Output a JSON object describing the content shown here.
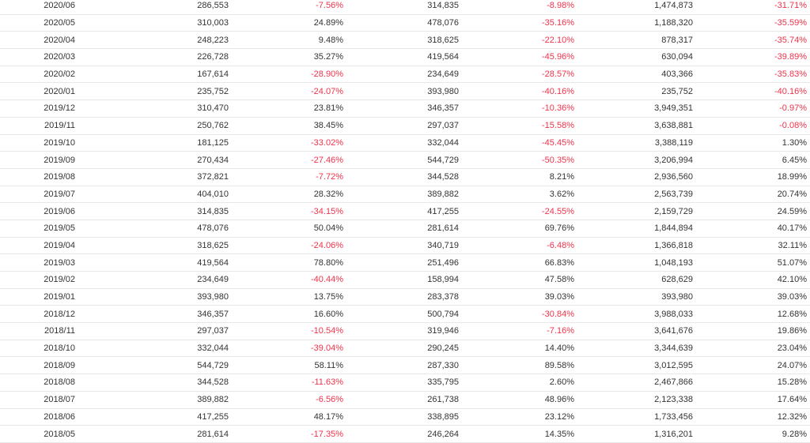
{
  "colors": {
    "negative": "#f0334b",
    "positive": "#333333",
    "row_border": "#e8e8e8"
  },
  "rows": [
    [
      "2020/06",
      "286,553",
      "-7.56%",
      "314,835",
      "-8.98%",
      "1,474,873",
      "-31.71%"
    ],
    [
      "2020/05",
      "310,003",
      "24.89%",
      "478,076",
      "-35.16%",
      "1,188,320",
      "-35.59%"
    ],
    [
      "2020/04",
      "248,223",
      "9.48%",
      "318,625",
      "-22.10%",
      "878,317",
      "-35.74%"
    ],
    [
      "2020/03",
      "226,728",
      "35.27%",
      "419,564",
      "-45.96%",
      "630,094",
      "-39.89%"
    ],
    [
      "2020/02",
      "167,614",
      "-28.90%",
      "234,649",
      "-28.57%",
      "403,366",
      "-35.83%"
    ],
    [
      "2020/01",
      "235,752",
      "-24.07%",
      "393,980",
      "-40.16%",
      "235,752",
      "-40.16%"
    ],
    [
      "2019/12",
      "310,470",
      "23.81%",
      "346,357",
      "-10.36%",
      "3,949,351",
      "-0.97%"
    ],
    [
      "2019/11",
      "250,762",
      "38.45%",
      "297,037",
      "-15.58%",
      "3,638,881",
      "-0.08%"
    ],
    [
      "2019/10",
      "181,125",
      "-33.02%",
      "332,044",
      "-45.45%",
      "3,388,119",
      "1.30%"
    ],
    [
      "2019/09",
      "270,434",
      "-27.46%",
      "544,729",
      "-50.35%",
      "3,206,994",
      "6.45%"
    ],
    [
      "2019/08",
      "372,821",
      "-7.72%",
      "344,528",
      "8.21%",
      "2,936,560",
      "18.99%"
    ],
    [
      "2019/07",
      "404,010",
      "28.32%",
      "389,882",
      "3.62%",
      "2,563,739",
      "20.74%"
    ],
    [
      "2019/06",
      "314,835",
      "-34.15%",
      "417,255",
      "-24.55%",
      "2,159,729",
      "24.59%"
    ],
    [
      "2019/05",
      "478,076",
      "50.04%",
      "281,614",
      "69.76%",
      "1,844,894",
      "40.17%"
    ],
    [
      "2019/04",
      "318,625",
      "-24.06%",
      "340,719",
      "-6.48%",
      "1,366,818",
      "32.11%"
    ],
    [
      "2019/03",
      "419,564",
      "78.80%",
      "251,496",
      "66.83%",
      "1,048,193",
      "51.07%"
    ],
    [
      "2019/02",
      "234,649",
      "-40.44%",
      "158,994",
      "47.58%",
      "628,629",
      "42.10%"
    ],
    [
      "2019/01",
      "393,980",
      "13.75%",
      "283,378",
      "39.03%",
      "393,980",
      "39.03%"
    ],
    [
      "2018/12",
      "346,357",
      "16.60%",
      "500,794",
      "-30.84%",
      "3,988,033",
      "12.68%"
    ],
    [
      "2018/11",
      "297,037",
      "-10.54%",
      "319,946",
      "-7.16%",
      "3,641,676",
      "19.86%"
    ],
    [
      "2018/10",
      "332,044",
      "-39.04%",
      "290,245",
      "14.40%",
      "3,344,639",
      "23.04%"
    ],
    [
      "2018/09",
      "544,729",
      "58.11%",
      "287,330",
      "89.58%",
      "3,012,595",
      "24.07%"
    ],
    [
      "2018/08",
      "344,528",
      "-11.63%",
      "335,795",
      "2.60%",
      "2,467,866",
      "15.28%"
    ],
    [
      "2018/07",
      "389,882",
      "-6.56%",
      "261,738",
      "48.96%",
      "2,123,338",
      "17.64%"
    ],
    [
      "2018/06",
      "417,255",
      "48.17%",
      "338,895",
      "23.12%",
      "1,733,456",
      "12.32%"
    ],
    [
      "2018/05",
      "281,614",
      "-17.35%",
      "246,264",
      "14.35%",
      "1,316,201",
      "9.28%"
    ]
  ]
}
